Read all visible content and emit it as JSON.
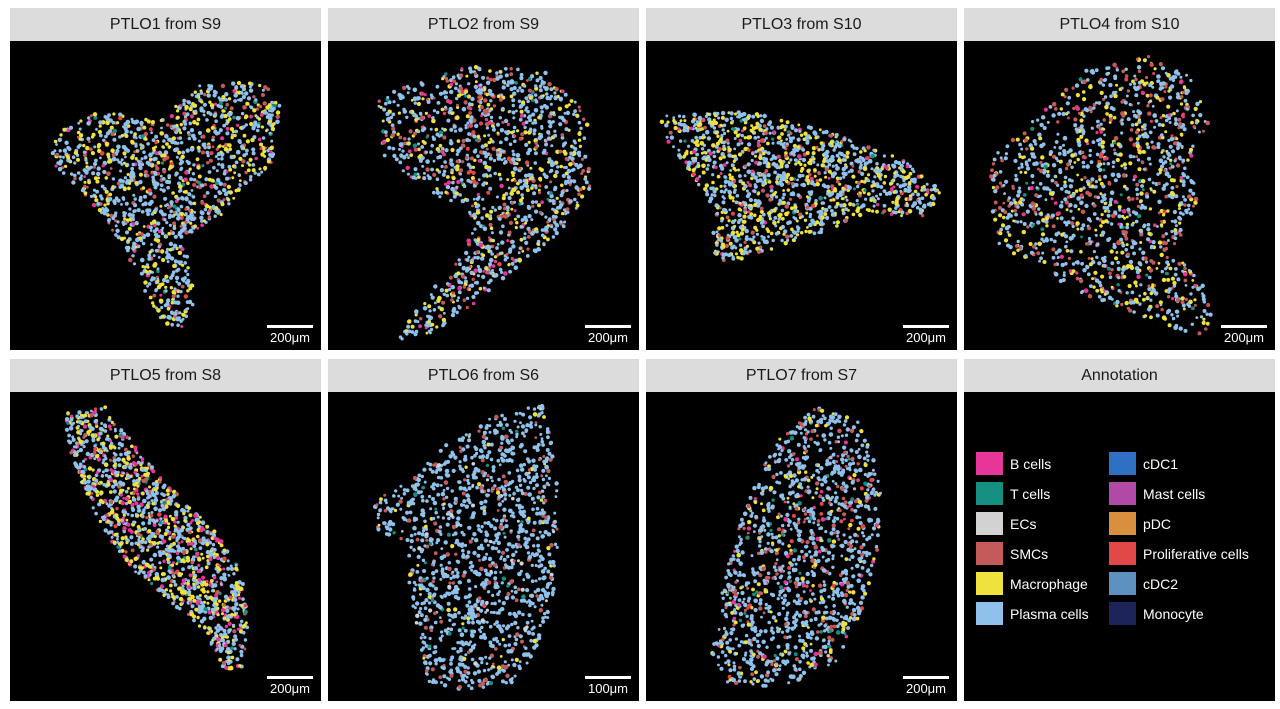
{
  "panels": [
    {
      "title": "PTLO1 from S9",
      "scale": "200μm"
    },
    {
      "title": "PTLO2 from S9",
      "scale": "200μm"
    },
    {
      "title": "PTLO3 from S10",
      "scale": "200μm"
    },
    {
      "title": "PTLO4 from S10",
      "scale": "200μm"
    },
    {
      "title": "PTLO5 from S8",
      "scale": "200μm"
    },
    {
      "title": "PTLO6 from S6",
      "scale": "100μm"
    },
    {
      "title": "PTLO7 from S7",
      "scale": "200μm"
    }
  ],
  "annotation": {
    "title": "Annotation",
    "items": [
      {
        "label": "B cells",
        "color": "#e8359a"
      },
      {
        "label": "cDC1",
        "color": "#2f6fc4"
      },
      {
        "label": "T cells",
        "color": "#148f80"
      },
      {
        "label": "Mast cells",
        "color": "#b04aa6"
      },
      {
        "label": "ECs",
        "color": "#d2d2d2"
      },
      {
        "label": "pDC",
        "color": "#d98f3e"
      },
      {
        "label": "SMCs",
        "color": "#c45a5a"
      },
      {
        "label": "Proliferative cells",
        "color": "#e34848"
      },
      {
        "label": "Macrophage",
        "color": "#efe23a"
      },
      {
        "label": "cDC2",
        "color": "#5d92c0"
      },
      {
        "label": "Plasma cells",
        "color": "#8ec2ec"
      },
      {
        "label": "Monocyte",
        "color": "#1c2459"
      }
    ]
  }
}
